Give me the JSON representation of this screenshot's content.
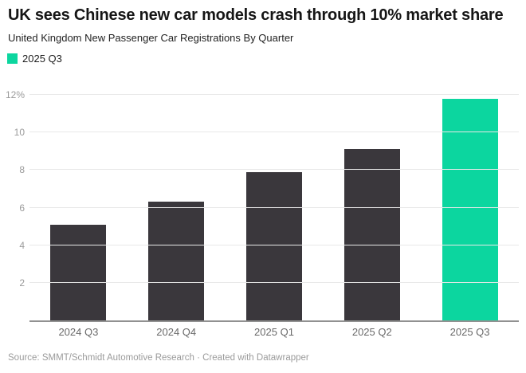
{
  "header": {
    "title": "UK sees Chinese new car models crash through 10% market share",
    "subtitle": "United Kingdom New Passenger Car Registrations By Quarter"
  },
  "legend": {
    "items": [
      {
        "label": "2025 Q3",
        "color": "#0cd69f"
      }
    ]
  },
  "chart_data": {
    "type": "bar",
    "title": "UK sees Chinese new car models crash through 10% market share",
    "subtitle": "United Kingdom New Passenger Car Registrations By Quarter",
    "categories": [
      "2024 Q3",
      "2024 Q4",
      "2025 Q1",
      "2025 Q2",
      "2025 Q3"
    ],
    "values": [
      5.1,
      6.3,
      7.9,
      9.1,
      11.8
    ],
    "unit": "%",
    "xlabel": "",
    "ylabel": "",
    "ylim": [
      0,
      12
    ],
    "yticks": [
      2,
      4,
      6,
      8,
      10,
      12
    ],
    "ytick_labels": [
      "2",
      "4",
      "6",
      "8",
      "10",
      "12%"
    ],
    "grid": true,
    "legend_position": "top-left",
    "bar_colors": [
      "#3a373c",
      "#3a373c",
      "#3a373c",
      "#3a373c",
      "#0cd69f"
    ],
    "default_bar_color": "#3a373c",
    "highlight_color": "#0cd69f",
    "gridline_color": "#e8e8e8",
    "axis_line_color": "#919191"
  },
  "footer": {
    "source": "Source: SMMT/Schmidt Automotive Research · Created with Datawrapper"
  }
}
